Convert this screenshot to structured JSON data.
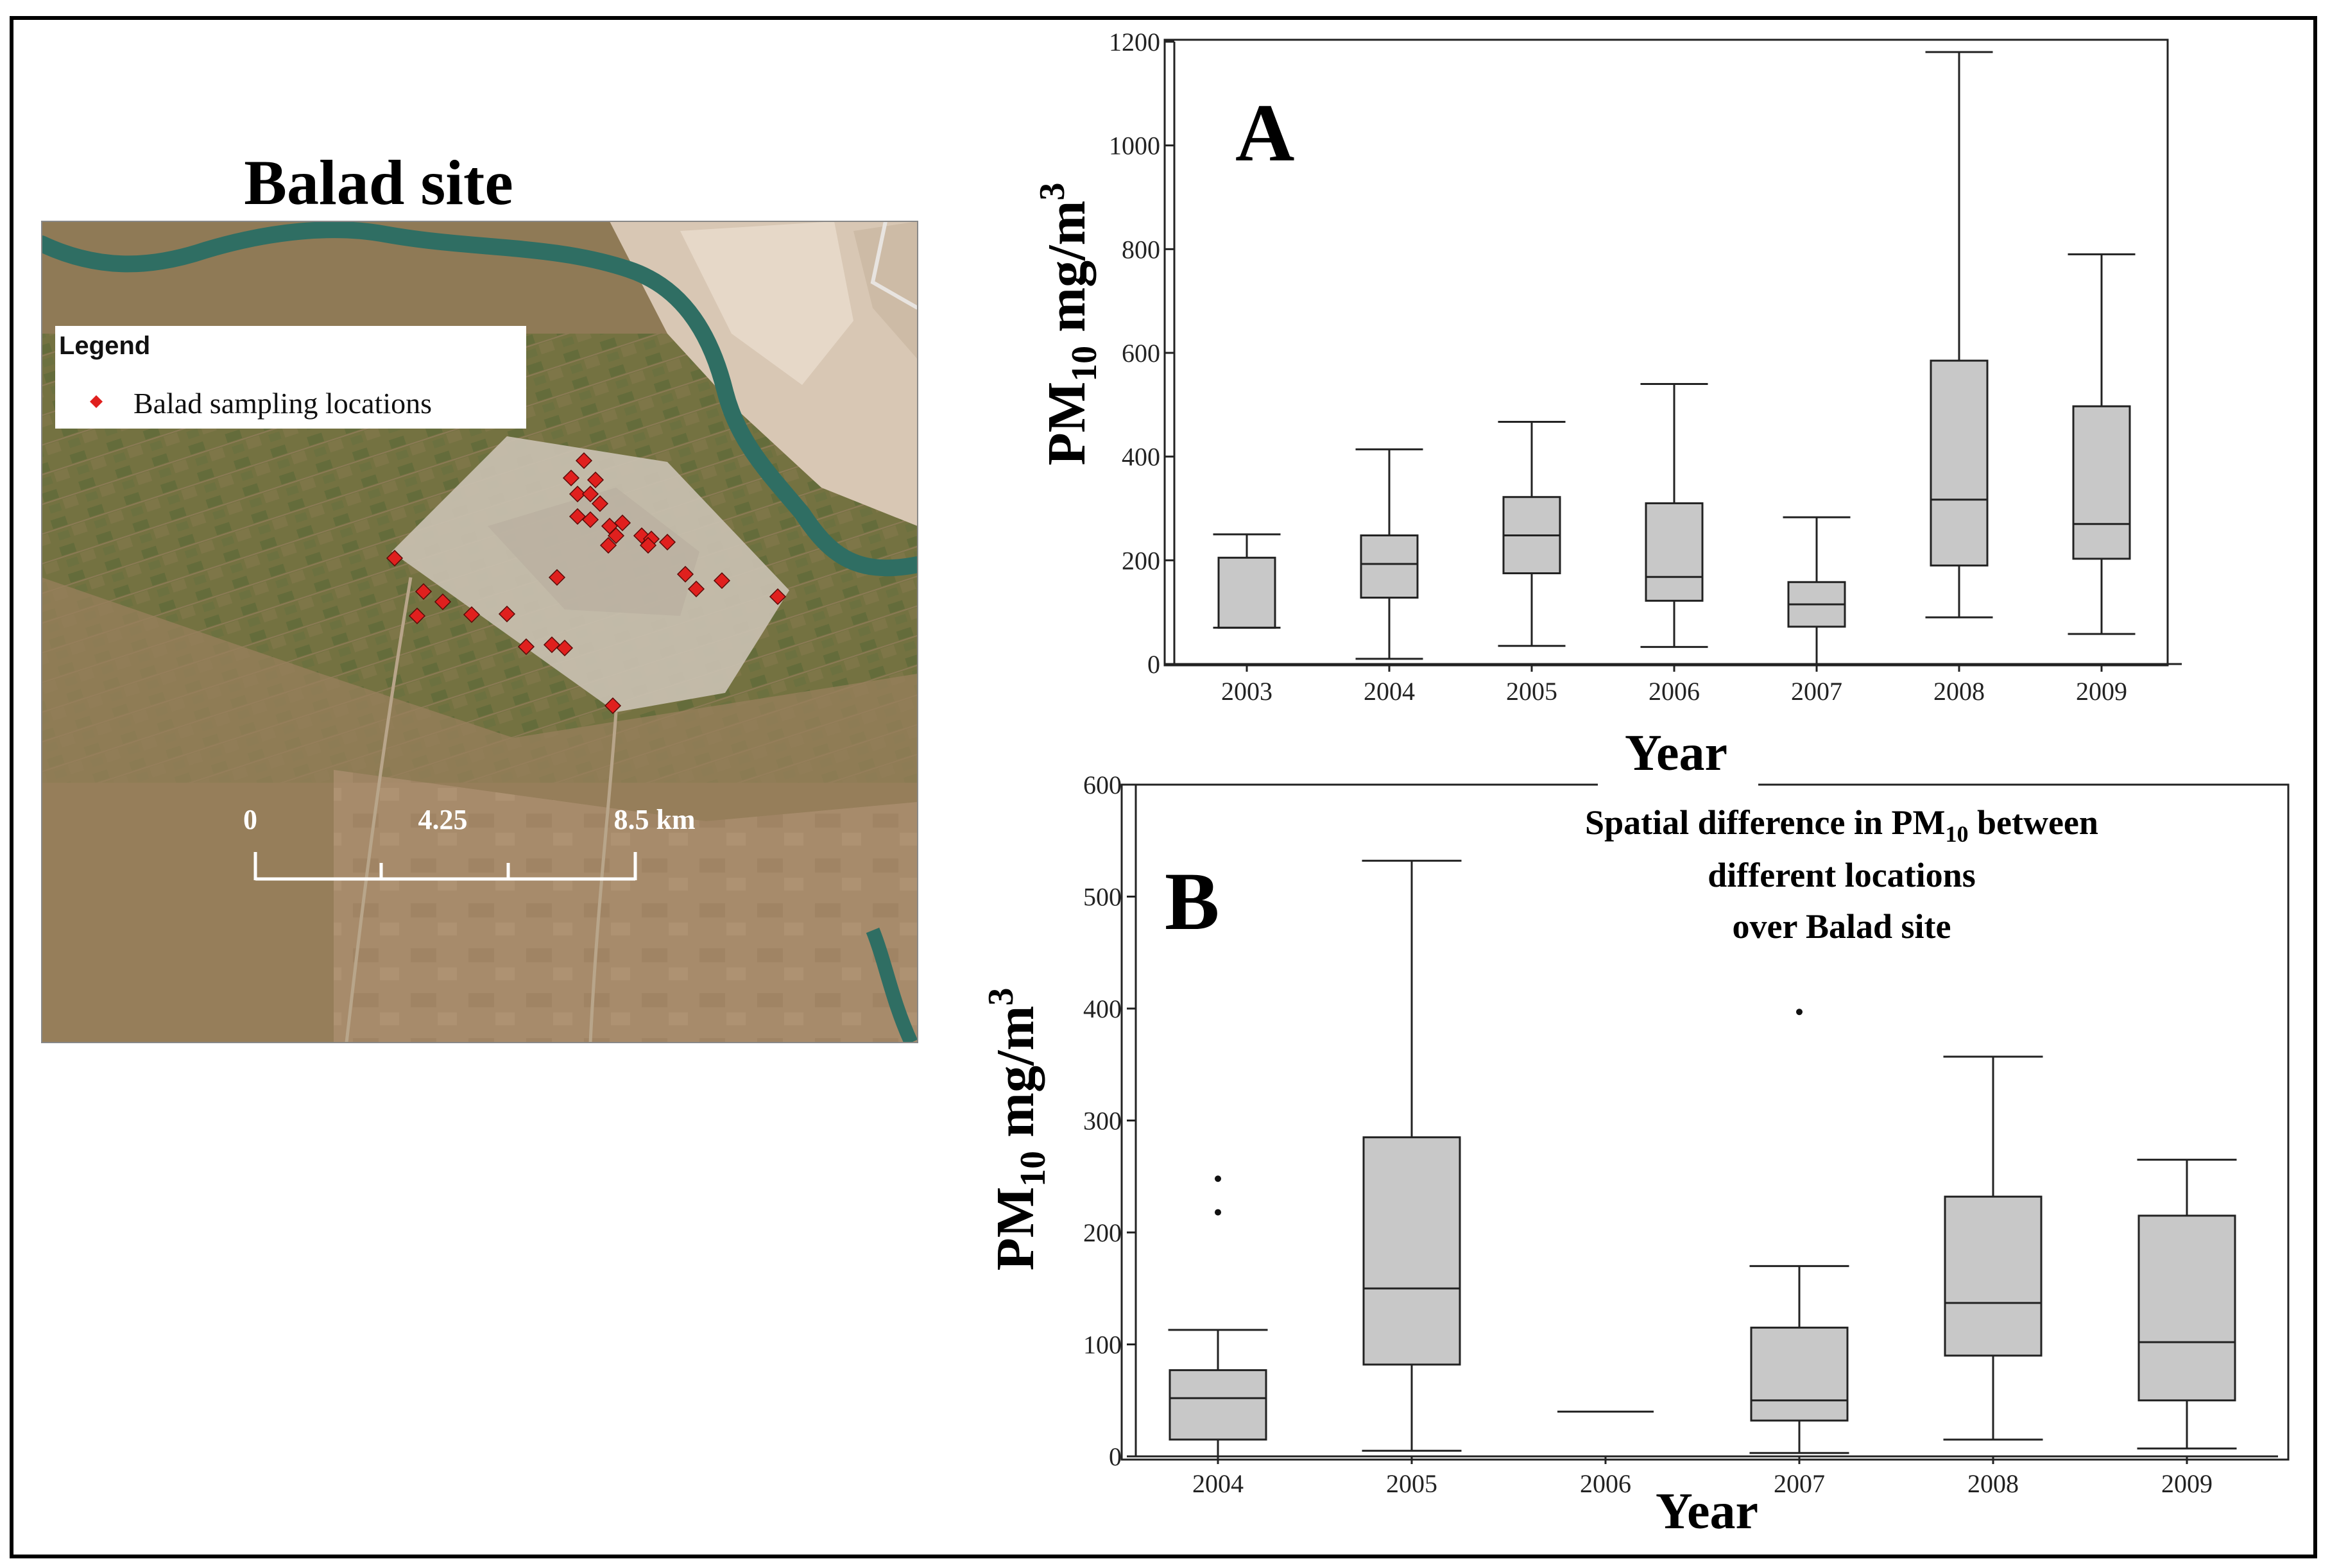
{
  "map": {
    "title": "Balad site",
    "legend_title": "Legend",
    "legend_item": "Balad sampling locations",
    "marker_color": "#e0201e",
    "scale_labels": [
      "0",
      "4.25",
      "8.5 km"
    ],
    "sampling_points_count": 31
  },
  "panel_labels": {
    "a": "A",
    "b": "B"
  },
  "chart_data": [
    {
      "type": "boxplot",
      "panel": "A",
      "categories": [
        "2003",
        "2004",
        "2005",
        "2006",
        "2007",
        "2008",
        "2009"
      ],
      "ylabel_main": "PM",
      "ylabel_sub": "10",
      "ylabel_unit": " mg/m",
      "ylabel_sup": "3",
      "xlabel": "Year",
      "ylim": [
        0,
        1200
      ],
      "yticks": [
        0,
        200,
        400,
        600,
        800,
        1000,
        1200
      ],
      "grid": false,
      "box_color": "#c8c8c8",
      "series": [
        {
          "category": "2003",
          "min": 70,
          "q1": 70,
          "median": 70,
          "q3": 205,
          "max": 250
        },
        {
          "category": "2004",
          "min": 10,
          "q1": 128,
          "median": 193,
          "q3": 248,
          "max": 414
        },
        {
          "category": "2005",
          "min": 35,
          "q1": 175,
          "median": 248,
          "q3": 322,
          "max": 467
        },
        {
          "category": "2006",
          "min": 33,
          "q1": 122,
          "median": 168,
          "q3": 310,
          "max": 540
        },
        {
          "category": "2007",
          "min": 0,
          "q1": 72,
          "median": 115,
          "q3": 158,
          "max": 283
        },
        {
          "category": "2008",
          "min": 90,
          "q1": 190,
          "median": 317,
          "q3": 585,
          "max": 1180
        },
        {
          "category": "2009",
          "min": 58,
          "q1": 203,
          "median": 270,
          "q3": 497,
          "max": 790
        }
      ]
    },
    {
      "type": "boxplot",
      "panel": "B",
      "categories": [
        "2004",
        "2005",
        "2006",
        "2007",
        "2008",
        "2009"
      ],
      "title_line1_main": "Spatial difference in PM",
      "title_line1_sub": "10",
      "title_line1_end": " between",
      "title_line2": "different locations",
      "title_line3": "over Balad site",
      "ylabel_main": "PM",
      "ylabel_sub": "10",
      "ylabel_unit": " mg/m",
      "ylabel_sup": "3",
      "xlabel": "Year",
      "ylim": [
        0,
        600
      ],
      "yticks": [
        0,
        100,
        200,
        300,
        400,
        500,
        600
      ],
      "grid": false,
      "box_color": "#c8c8c8",
      "series": [
        {
          "category": "2004",
          "min": 0,
          "q1": 15,
          "median": 52,
          "q3": 77,
          "max": 113,
          "outliers": [
            218,
            248
          ]
        },
        {
          "category": "2005",
          "min": 5,
          "q1": 82,
          "median": 150,
          "q3": 285,
          "max": 532,
          "outliers": []
        },
        {
          "category": "2006",
          "min": 40,
          "q1": 40,
          "median": 40,
          "q3": 40,
          "max": 40,
          "outliers": []
        },
        {
          "category": "2007",
          "min": 3,
          "q1": 32,
          "median": 50,
          "q3": 115,
          "max": 170,
          "outliers": [
            397
          ]
        },
        {
          "category": "2008",
          "min": 15,
          "q1": 90,
          "median": 137,
          "q3": 232,
          "max": 357,
          "outliers": []
        },
        {
          "category": "2009",
          "min": 7,
          "q1": 50,
          "median": 102,
          "q3": 215,
          "max": 265,
          "outliers": []
        }
      ]
    }
  ]
}
